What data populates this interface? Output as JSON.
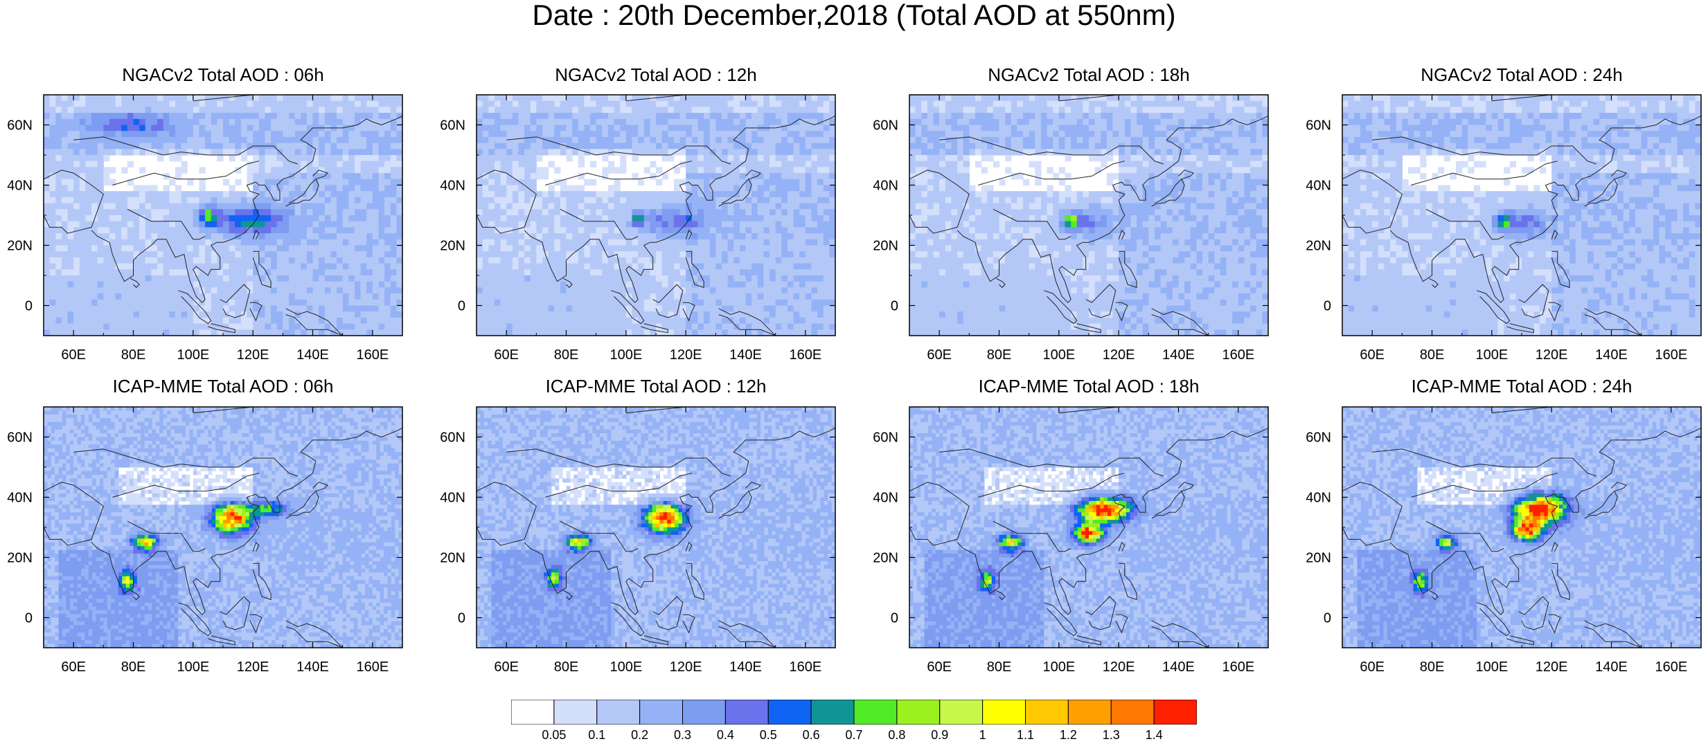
{
  "title": "Date : 20th December,2018 (Total AOD at 550nm)",
  "lon_ticks": [
    "60E",
    "80E",
    "100E",
    "120E",
    "140E",
    "160E"
  ],
  "lat_ticks": [
    "60N",
    "40N",
    "20N",
    "0"
  ],
  "extent": {
    "lon": [
      50,
      170
    ],
    "lat": [
      -10,
      70
    ]
  },
  "rows": [
    {
      "model": "NGACv2",
      "panels": [
        {
          "title": "NGACv2 Total AOD : 06h",
          "hotspots": [
            {
              "lon": 118,
              "lat": 28,
              "rlon": 16,
              "rlat": 6,
              "v": 0.45
            },
            {
              "lon": 105,
              "lat": 30,
              "rlon": 4,
              "rlat": 4,
              "v": 0.5
            },
            {
              "lon": 80,
              "lat": 60,
              "rlon": 18,
              "rlat": 5,
              "v": 0.3
            }
          ]
        },
        {
          "title": "NGACv2 Total AOD : 12h",
          "hotspots": [
            {
              "lon": 116,
              "lat": 28,
              "rlon": 12,
              "rlat": 6,
              "v": 0.35
            },
            {
              "lon": 104,
              "lat": 29,
              "rlon": 3,
              "rlat": 3,
              "v": 0.55
            }
          ]
        },
        {
          "title": "NGACv2 Total AOD : 18h",
          "hotspots": [
            {
              "lon": 110,
              "lat": 27,
              "rlon": 10,
              "rlat": 6,
              "v": 0.3
            },
            {
              "lon": 104,
              "lat": 28,
              "rlon": 3,
              "rlat": 3,
              "v": 0.75
            }
          ]
        },
        {
          "title": "NGACv2 Total AOD : 24h",
          "hotspots": [
            {
              "lon": 111,
              "lat": 27,
              "rlon": 10,
              "rlat": 6,
              "v": 0.35
            },
            {
              "lon": 104,
              "lat": 28,
              "rlon": 3,
              "rlat": 3,
              "v": 0.7
            }
          ]
        }
      ]
    },
    {
      "model": "ICAP-MME",
      "panels": [
        {
          "title": "ICAP-MME Total AOD : 06h",
          "hotspots": [
            {
              "lon": 113,
              "lat": 33,
              "rlon": 8,
              "rlat": 6,
              "v": 1.2
            },
            {
              "lon": 84,
              "lat": 25,
              "rlon": 5,
              "rlat": 3,
              "v": 1.0
            },
            {
              "lon": 78,
              "lat": 12,
              "rlon": 3,
              "rlat": 4,
              "v": 0.7
            },
            {
              "lon": 125,
              "lat": 36,
              "rlon": 8,
              "rlat": 3,
              "v": 0.5
            }
          ]
        },
        {
          "title": "ICAP-MME Total AOD : 12h",
          "hotspots": [
            {
              "lon": 113,
              "lat": 33,
              "rlon": 8,
              "rlat": 6,
              "v": 1.2
            },
            {
              "lon": 84,
              "lat": 25,
              "rlon": 5,
              "rlat": 3,
              "v": 0.9
            },
            {
              "lon": 76,
              "lat": 13,
              "rlon": 3,
              "rlat": 4,
              "v": 0.6
            }
          ]
        },
        {
          "title": "ICAP-MME Total AOD : 18h",
          "hotspots": [
            {
              "lon": 115,
              "lat": 36,
              "rlon": 10,
              "rlat": 5,
              "v": 1.4
            },
            {
              "lon": 110,
              "lat": 28,
              "rlon": 6,
              "rlat": 4,
              "v": 1.2
            },
            {
              "lon": 84,
              "lat": 25,
              "rlon": 5,
              "rlat": 3,
              "v": 0.9
            },
            {
              "lon": 76,
              "lat": 12,
              "rlon": 3,
              "rlat": 4,
              "v": 0.6
            }
          ]
        },
        {
          "title": "ICAP-MME Total AOD : 24h",
          "hotspots": [
            {
              "lon": 116,
              "lat": 36,
              "rlon": 10,
              "rlat": 6,
              "v": 1.4
            },
            {
              "lon": 112,
              "lat": 29,
              "rlon": 6,
              "rlat": 4,
              "v": 1.2
            },
            {
              "lon": 85,
              "lat": 25,
              "rlon": 4,
              "rlat": 3,
              "v": 0.8
            },
            {
              "lon": 76,
              "lat": 12,
              "rlon": 3,
              "rlat": 4,
              "v": 0.6
            }
          ]
        }
      ]
    }
  ],
  "colorbar": {
    "levels": [
      "0.05",
      "0.1",
      "0.2",
      "0.3",
      "0.4",
      "0.5",
      "0.6",
      "0.7",
      "0.8",
      "0.9",
      "1",
      "1.1",
      "1.2",
      "1.3",
      "1.4"
    ],
    "colors": [
      "#ffffff",
      "#d4dffb",
      "#b4c8f8",
      "#94b2f5",
      "#7e9cf0",
      "#6a72ec",
      "#1064f4",
      "#0f9694",
      "#52eb27",
      "#9bf01f",
      "#c8f74b",
      "#ffff00",
      "#ffc800",
      "#ff9f00",
      "#ff7800",
      "#ff2000"
    ]
  }
}
